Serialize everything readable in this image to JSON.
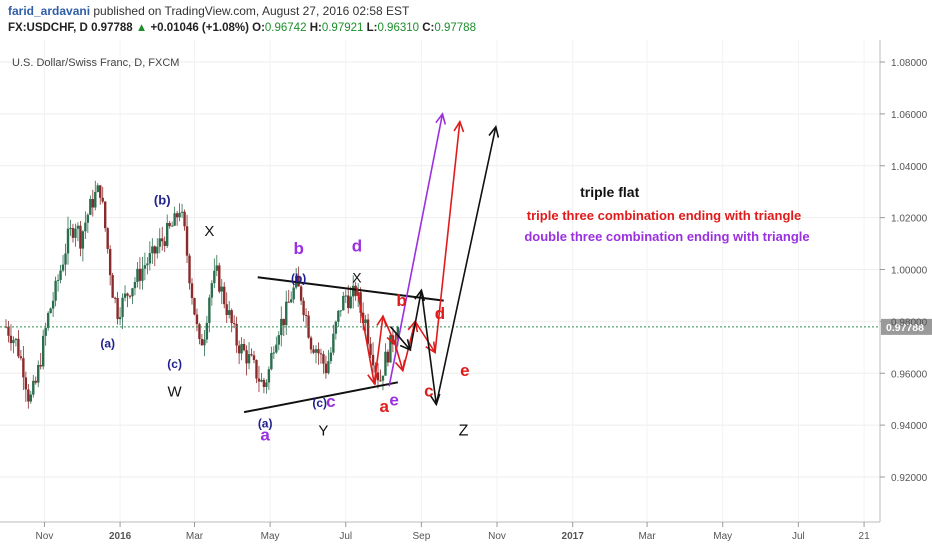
{
  "header": {
    "author": "farid_ardavani",
    "published_text": " published on TradingView.com, August 27, 2016 02:58 EST",
    "symbol": "FX:USDCHF, D",
    "price": "0.97788",
    "change": "+0.01046 (+1.08%)",
    "o_label": "O:",
    "o_value": "0.96742",
    "h_label": "H:",
    "h_value": "0.97921",
    "l_label": "L:",
    "l_value": "0.96310",
    "c_label": "C:",
    "c_value": "0.97788"
  },
  "colors": {
    "up_candle": "#2a6e4f",
    "down_candle": "#8b2a2a",
    "black_wave": "#111111",
    "red_wave": "#e01b1b",
    "purple_wave": "#9b30e0",
    "navy_label": "#1f1f8f",
    "current_price_line": "#2f8f4f",
    "axis_text": "#555555"
  },
  "chart_data": {
    "type": "candlestick",
    "title": "U.S. Dollar/Swiss Franc, D, FXCM",
    "ylim": [
      0.9,
      1.09
    ],
    "y_ticks": [
      "1.08000",
      "1.06000",
      "1.04000",
      "1.02000",
      "1.00000",
      "0.98000",
      "0.96000",
      "0.94000",
      "0.92000"
    ],
    "y_tick_values": [
      1.08,
      1.06,
      1.04,
      1.02,
      1.0,
      0.98,
      0.96,
      0.94,
      0.92
    ],
    "x_ticks": [
      "Nov",
      "2016",
      "Mar",
      "May",
      "Jul",
      "Sep",
      "Nov",
      "2017",
      "Mar",
      "May",
      "Jul",
      "21"
    ],
    "x_tick_days": [
      31,
      92,
      152,
      213,
      274,
      335,
      396,
      457,
      517,
      578,
      639,
      692
    ],
    "last_price": 0.97788,
    "last_price_label": "0.97788",
    "price_path": [
      [
        0,
        0.978
      ],
      [
        8,
        0.972
      ],
      [
        14,
        0.962
      ],
      [
        19,
        0.949
      ],
      [
        24,
        0.956
      ],
      [
        28,
        0.966
      ],
      [
        34,
        0.982
      ],
      [
        40,
        0.992
      ],
      [
        46,
        1.004
      ],
      [
        50,
        1.012
      ],
      [
        56,
        1.018
      ],
      [
        60,
        1.012
      ],
      [
        65,
        1.02
      ],
      [
        71,
        1.028
      ],
      [
        76,
        1.031
      ],
      [
        80,
        1.016
      ],
      [
        86,
        0.992
      ],
      [
        90,
        0.984
      ],
      [
        95,
        0.988
      ],
      [
        100,
        0.993
      ],
      [
        106,
        0.997
      ],
      [
        112,
        1.002
      ],
      [
        118,
        1.005
      ],
      [
        124,
        1.01
      ],
      [
        130,
        1.014
      ],
      [
        136,
        1.018
      ],
      [
        140,
        1.024
      ],
      [
        144,
        1.014
      ],
      [
        148,
        0.998
      ],
      [
        152,
        0.984
      ],
      [
        156,
        0.97
      ],
      [
        160,
        0.976
      ],
      [
        165,
        0.994
      ],
      [
        170,
        0.998
      ],
      [
        175,
        0.99
      ],
      [
        180,
        0.982
      ],
      [
        186,
        0.972
      ],
      [
        192,
        0.968
      ],
      [
        198,
        0.964
      ],
      [
        204,
        0.958
      ],
      [
        208,
        0.955
      ],
      [
        212,
        0.961
      ],
      [
        216,
        0.972
      ],
      [
        220,
        0.978
      ],
      [
        225,
        0.982
      ],
      [
        230,
        0.99
      ],
      [
        234,
        0.994
      ],
      [
        238,
        0.99
      ],
      [
        242,
        0.982
      ],
      [
        246,
        0.972
      ],
      [
        250,
        0.97
      ],
      [
        254,
        0.966
      ],
      [
        258,
        0.962
      ],
      [
        262,
        0.968
      ],
      [
        266,
        0.978
      ],
      [
        270,
        0.986
      ],
      [
        274,
        0.99
      ],
      [
        278,
        0.988
      ],
      [
        282,
        0.992
      ],
      [
        286,
        0.984
      ],
      [
        290,
        0.98
      ],
      [
        293,
        0.972
      ],
      [
        296,
        0.967
      ],
      [
        299,
        0.96
      ],
      [
        302,
        0.958
      ],
      [
        305,
        0.964
      ],
      [
        308,
        0.968
      ],
      [
        311,
        0.972
      ],
      [
        314,
        0.976
      ],
      [
        316,
        0.978
      ]
    ],
    "lines": [
      {
        "name": "triangle-upper",
        "color": "black",
        "points": [
          [
            203,
            0.997
          ],
          [
            353,
            0.988
          ]
        ]
      },
      {
        "name": "triangle-lower",
        "color": "black",
        "points": [
          [
            192,
            0.945
          ],
          [
            316,
            0.9565
          ]
        ]
      },
      {
        "name": "purple-wave",
        "color": "purple",
        "points": [
          [
            309,
            0.955
          ],
          [
            352,
            1.06
          ]
        ]
      },
      {
        "name": "red-wave",
        "color": "red",
        "points": [
          [
            283,
            0.993
          ],
          [
            297,
            0.956
          ],
          [
            304,
            0.982
          ],
          [
            314,
            0.971
          ],
          [
            320,
            0.961
          ],
          [
            330,
            0.98
          ],
          [
            346,
            0.968
          ],
          [
            366,
            1.057
          ]
        ]
      },
      {
        "name": "black-wave",
        "color": "black",
        "points": [
          [
            310,
            0.978
          ],
          [
            326,
            0.969
          ],
          [
            335,
            0.992
          ],
          [
            347,
            0.948
          ],
          [
            395,
            1.055
          ]
        ]
      }
    ],
    "markers": [
      {
        "text": "(b)",
        "day": 126,
        "price": 1.025,
        "color": "navy",
        "size": 13
      },
      {
        "text": "X",
        "day": 164,
        "price": 1.013,
        "color": "black",
        "size": 15
      },
      {
        "text": "(a)",
        "day": 82,
        "price": 0.97,
        "color": "navy",
        "size": 12
      },
      {
        "text": "(c)",
        "day": 136,
        "price": 0.962,
        "color": "navy",
        "size": 12
      },
      {
        "text": "W",
        "day": 136,
        "price": 0.951,
        "color": "black",
        "size": 15
      },
      {
        "text": "b",
        "day": 236,
        "price": 1.006,
        "color": "purple",
        "size": 17
      },
      {
        "text": "(b)",
        "day": 236,
        "price": 0.995,
        "color": "navy",
        "size": 12
      },
      {
        "text": "d",
        "day": 283,
        "price": 1.007,
        "color": "purple",
        "size": 17
      },
      {
        "text": "X",
        "day": 283,
        "price": 0.995,
        "color": "black",
        "size": 14
      },
      {
        "text": "(a)",
        "day": 209,
        "price": 0.939,
        "color": "navy",
        "size": 12
      },
      {
        "text": "a",
        "day": 209,
        "price": 0.934,
        "color": "purple",
        "size": 17
      },
      {
        "text": "(c)",
        "day": 253,
        "price": 0.947,
        "color": "navy",
        "size": 12
      },
      {
        "text": "c",
        "day": 262,
        "price": 0.947,
        "color": "purple",
        "size": 17
      },
      {
        "text": "Y",
        "day": 256,
        "price": 0.936,
        "color": "black",
        "size": 15
      },
      {
        "text": "b",
        "day": 319,
        "price": 0.986,
        "color": "red",
        "size": 17
      },
      {
        "text": "d",
        "day": 350,
        "price": 0.981,
        "color": "red",
        "size": 17
      },
      {
        "text": "a",
        "day": 305,
        "price": 0.945,
        "color": "red",
        "size": 17
      },
      {
        "text": "e",
        "day": 313,
        "price": 0.9475,
        "color": "purple",
        "size": 17
      },
      {
        "text": "c",
        "day": 341,
        "price": 0.951,
        "color": "red",
        "size": 17
      },
      {
        "text": "e",
        "day": 370,
        "price": 0.959,
        "color": "red",
        "size": 17
      },
      {
        "text": "Z",
        "day": 369,
        "price": 0.936,
        "color": "black",
        "size": 16
      }
    ],
    "annotations": [
      {
        "text": "triple flat",
        "day": 463,
        "price": 1.028,
        "color": "black",
        "size": 14
      },
      {
        "text": "triple three combination ending with triangle",
        "day": 420,
        "price": 1.019,
        "color": "red",
        "size": 13
      },
      {
        "text": "double three combination ending with triangle",
        "day": 418,
        "price": 1.011,
        "color": "purple",
        "size": 13
      }
    ]
  }
}
